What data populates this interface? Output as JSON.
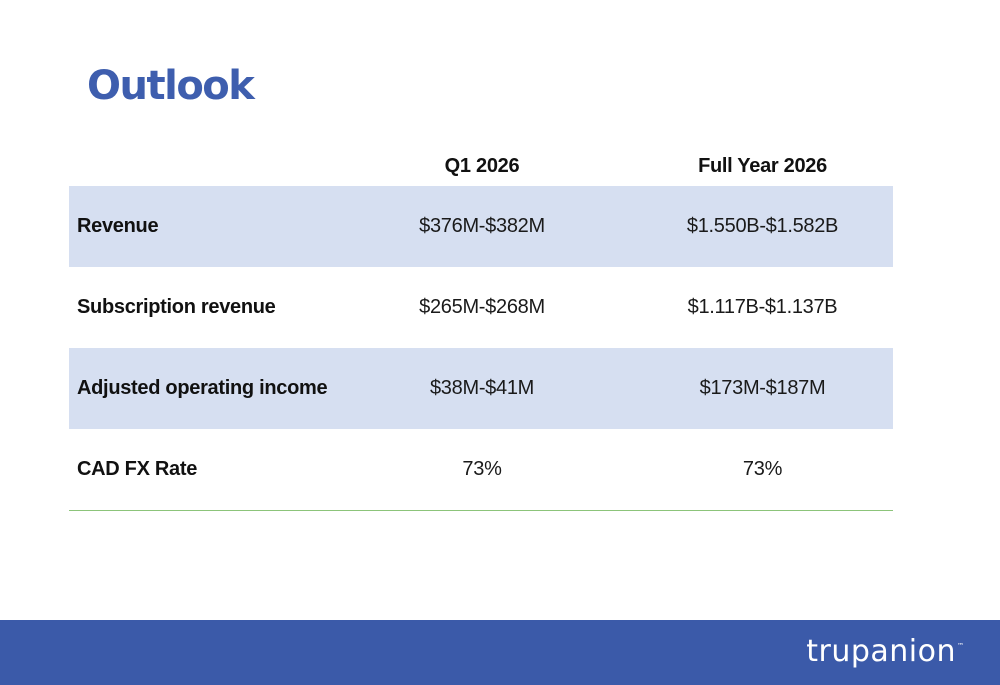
{
  "title": "Outlook",
  "table": {
    "columns": [
      "",
      "Q1 2026",
      "Full Year 2026"
    ],
    "rows": [
      {
        "label": "Revenue",
        "q1": "$376M-$382M",
        "fy": "$1.550B-$1.582B"
      },
      {
        "label": "Subscription revenue",
        "q1": "$265M-$268M",
        "fy": "$1.117B-$1.137B"
      },
      {
        "label": "Adjusted operating income",
        "q1": "$38M-$41M",
        "fy": "$173M-$187M"
      },
      {
        "label": "CAD FX Rate",
        "q1": "73%",
        "fy": "73%"
      }
    ]
  },
  "footer": {
    "brand": "trupanion",
    "trademark": "™"
  },
  "colors": {
    "title": "#3e5eae",
    "row_shade": "#d6dff1",
    "footer_band": "#3b5aa9",
    "table_rule": "#8cc47a"
  }
}
